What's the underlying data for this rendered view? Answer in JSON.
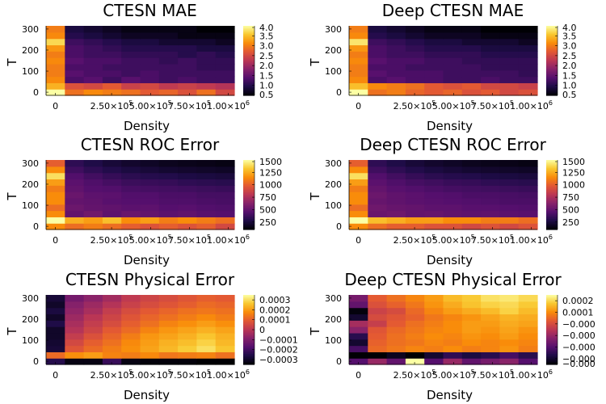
{
  "figure": {
    "background": "#ffffff",
    "colormap": "inferno"
  },
  "chart_data": [
    {
      "type": "heatmap",
      "title": "CTESN MAE",
      "xlabel": "Density",
      "ylabel": "T",
      "xticks": [
        {
          "label": "0"
        },
        {
          "label": "2.50×10",
          "sup": "5"
        },
        {
          "label": "5.00×10",
          "sup": "5"
        },
        {
          "label": "7.50×10",
          "sup": "5"
        },
        {
          "label": "1.00×10",
          "sup": "6"
        }
      ],
      "yticks": [
        "0",
        "100",
        "200",
        "300"
      ],
      "xlim": [
        0,
        1000000
      ],
      "ylim": [
        0,
        300
      ],
      "clim": [
        0.5,
        4.0
      ],
      "colorbar_ticks": [
        "0.5",
        "1.0",
        "1.5",
        "2.0",
        "2.5",
        "3.0",
        "3.5",
        "4.0"
      ],
      "colorbar_values": [
        0.5,
        1.0,
        1.5,
        2.0,
        2.5,
        3.0,
        3.5,
        4.0
      ],
      "grid": false,
      "values": [
        [
          4.0,
          2.9,
          3.1,
          3.0,
          2.9,
          2.7,
          2.8,
          2.6,
          2.9,
          2.5
        ],
        [
          3.4,
          2.6,
          2.5,
          2.7,
          2.4,
          2.5,
          2.3,
          2.4,
          2.3,
          2.2
        ],
        [
          3.1,
          1.3,
          1.4,
          1.2,
          1.4,
          1.3,
          1.2,
          1.3,
          1.2,
          1.2
        ],
        [
          3.0,
          1.4,
          1.3,
          1.3,
          1.2,
          1.3,
          1.2,
          1.2,
          1.2,
          1.2
        ],
        [
          3.0,
          1.3,
          1.3,
          1.2,
          1.2,
          1.2,
          1.2,
          1.2,
          1.1,
          1.1
        ],
        [
          3.1,
          1.4,
          1.3,
          1.3,
          1.2,
          1.2,
          1.1,
          1.2,
          1.1,
          1.1
        ],
        [
          3.0,
          1.3,
          1.2,
          1.2,
          1.1,
          1.1,
          1.1,
          1.0,
          1.1,
          1.0
        ],
        [
          3.2,
          1.3,
          1.2,
          1.1,
          1.0,
          1.0,
          1.0,
          1.0,
          0.9,
          0.9
        ],
        [
          3.7,
          1.2,
          1.1,
          1.0,
          0.9,
          0.9,
          0.8,
          0.8,
          0.8,
          0.7
        ],
        [
          3.1,
          1.0,
          0.9,
          0.8,
          0.7,
          0.7,
          0.7,
          0.6,
          0.6,
          0.6
        ],
        [
          3.0,
          0.9,
          0.8,
          0.7,
          0.6,
          0.6,
          0.6,
          0.6,
          0.5,
          0.5
        ]
      ]
    },
    {
      "type": "heatmap",
      "title": "Deep CTESN MAE",
      "xlabel": "Density",
      "ylabel": "T",
      "xticks": [
        {
          "label": "0"
        },
        {
          "label": "2.50×10",
          "sup": "5"
        },
        {
          "label": "5.00×10",
          "sup": "5"
        },
        {
          "label": "7.50×10",
          "sup": "5"
        },
        {
          "label": "1.00×10",
          "sup": "6"
        }
      ],
      "yticks": [
        "0",
        "100",
        "200",
        "300"
      ],
      "xlim": [
        0,
        1000000
      ],
      "ylim": [
        0,
        300
      ],
      "clim": [
        0.5,
        4.0
      ],
      "colorbar_ticks": [
        "0.5",
        "1.0",
        "1.5",
        "2.0",
        "2.5",
        "3.0",
        "3.5",
        "4.0"
      ],
      "colorbar_values": [
        0.5,
        1.0,
        1.5,
        2.0,
        2.5,
        3.0,
        3.5,
        4.0
      ],
      "grid": false,
      "values": [
        [
          4.0,
          2.9,
          3.0,
          2.8,
          2.7,
          2.8,
          2.6,
          2.7,
          2.5,
          2.6
        ],
        [
          3.5,
          3.1,
          3.0,
          2.9,
          2.7,
          2.6,
          2.7,
          2.5,
          2.5,
          2.4
        ],
        [
          3.1,
          1.3,
          1.4,
          1.3,
          1.3,
          1.2,
          1.2,
          1.3,
          1.2,
          1.2
        ],
        [
          3.0,
          1.4,
          1.3,
          1.3,
          1.3,
          1.2,
          1.2,
          1.2,
          1.2,
          1.1
        ],
        [
          3.0,
          1.3,
          1.3,
          1.2,
          1.2,
          1.2,
          1.2,
          1.1,
          1.1,
          1.1
        ],
        [
          3.1,
          1.4,
          1.3,
          1.3,
          1.2,
          1.2,
          1.1,
          1.1,
          1.1,
          1.1
        ],
        [
          3.0,
          1.3,
          1.2,
          1.2,
          1.1,
          1.1,
          1.1,
          1.0,
          1.0,
          1.0
        ],
        [
          3.2,
          1.3,
          1.2,
          1.1,
          1.0,
          1.0,
          1.0,
          0.9,
          0.9,
          0.9
        ],
        [
          3.8,
          1.2,
          1.1,
          1.0,
          0.9,
          0.9,
          0.8,
          0.8,
          0.8,
          0.7
        ],
        [
          3.1,
          1.0,
          0.9,
          0.8,
          0.7,
          0.7,
          0.7,
          0.6,
          0.6,
          0.6
        ],
        [
          3.0,
          0.9,
          0.8,
          0.7,
          0.6,
          0.6,
          0.6,
          0.5,
          0.5,
          0.5
        ]
      ]
    },
    {
      "type": "heatmap",
      "title": "CTESN ROC Error",
      "xlabel": "Density",
      "ylabel": "T",
      "xticks": [
        {
          "label": "0"
        },
        {
          "label": "2.50×10",
          "sup": "5"
        },
        {
          "label": "5.00×10",
          "sup": "5"
        },
        {
          "label": "7.50×10",
          "sup": "5"
        },
        {
          "label": "1.00×10",
          "sup": "6"
        }
      ],
      "yticks": [
        "0",
        "100",
        "200",
        "300"
      ],
      "xlim": [
        0,
        1000000
      ],
      "ylim": [
        0,
        300
      ],
      "clim": [
        100,
        1500
      ],
      "colorbar_ticks": [
        "250",
        "500",
        "750",
        "1000",
        "1250",
        "1500"
      ],
      "colorbar_values": [
        250,
        500,
        750,
        1000,
        1250,
        1500
      ],
      "grid": false,
      "values": [
        [
          1150,
          1050,
          1100,
          1050,
          1000,
          950,
          1000,
          950,
          1000,
          900
        ],
        [
          1500,
          1250,
          1200,
          1300,
          1150,
          1200,
          1100,
          1150,
          1100,
          1050
        ],
        [
          1150,
          500,
          550,
          480,
          520,
          500,
          470,
          490,
          460,
          450
        ],
        [
          1050,
          530,
          500,
          490,
          470,
          480,
          450,
          460,
          440,
          430
        ],
        [
          1150,
          500,
          490,
          460,
          450,
          450,
          430,
          430,
          420,
          410
        ],
        [
          1150,
          520,
          480,
          470,
          440,
          440,
          420,
          420,
          400,
          400
        ],
        [
          1100,
          490,
          450,
          440,
          410,
          400,
          390,
          380,
          370,
          360
        ],
        [
          1200,
          470,
          430,
          400,
          370,
          360,
          350,
          330,
          320,
          310
        ],
        [
          1400,
          440,
          390,
          350,
          320,
          300,
          290,
          270,
          260,
          250
        ],
        [
          1150,
          380,
          330,
          290,
          260,
          240,
          220,
          210,
          200,
          190
        ],
        [
          1000,
          330,
          280,
          240,
          210,
          190,
          170,
          160,
          150,
          140
        ]
      ]
    },
    {
      "type": "heatmap",
      "title": "Deep CTESN ROC Error",
      "xlabel": "Density",
      "ylabel": "T",
      "xticks": [
        {
          "label": "0"
        },
        {
          "label": "2.50×10",
          "sup": "5"
        },
        {
          "label": "5.00×10",
          "sup": "5"
        },
        {
          "label": "7.50×10",
          "sup": "5"
        },
        {
          "label": "1.00×10",
          "sup": "6"
        }
      ],
      "yticks": [
        "0",
        "100",
        "200",
        "300"
      ],
      "xlim": [
        0,
        1000000
      ],
      "ylim": [
        0,
        300
      ],
      "clim": [
        100,
        1500
      ],
      "colorbar_ticks": [
        "250",
        "500",
        "750",
        "1000",
        "1250",
        "1500"
      ],
      "colorbar_values": [
        250,
        500,
        750,
        1000,
        1250,
        1500
      ],
      "grid": false,
      "values": [
        [
          1150,
          1050,
          1000,
          1000,
          950,
          950,
          900,
          950,
          900,
          950
        ],
        [
          1500,
          1300,
          1250,
          1200,
          1200,
          1150,
          1150,
          1100,
          1100,
          1050
        ],
        [
          1150,
          520,
          540,
          500,
          510,
          490,
          480,
          490,
          470,
          460
        ],
        [
          1050,
          540,
          510,
          500,
          480,
          480,
          460,
          460,
          450,
          440
        ],
        [
          1150,
          510,
          490,
          470,
          460,
          450,
          440,
          430,
          420,
          420
        ],
        [
          1150,
          530,
          490,
          470,
          450,
          440,
          420,
          420,
          410,
          400
        ],
        [
          1100,
          500,
          460,
          440,
          420,
          400,
          390,
          380,
          370,
          360
        ],
        [
          1200,
          470,
          430,
          400,
          380,
          360,
          350,
          330,
          320,
          310
        ],
        [
          1400,
          440,
          390,
          350,
          320,
          300,
          290,
          270,
          260,
          250
        ],
        [
          1150,
          380,
          330,
          290,
          260,
          240,
          220,
          210,
          200,
          190
        ],
        [
          1000,
          330,
          280,
          240,
          210,
          190,
          170,
          160,
          150,
          140
        ]
      ]
    },
    {
      "type": "heatmap",
      "title": "CTESN Physical Error",
      "xlabel": "Density",
      "ylabel": "T",
      "xticks": [
        {
          "label": "0"
        },
        {
          "label": "2.50×10",
          "sup": "5"
        },
        {
          "label": "5.00×10",
          "sup": "5"
        },
        {
          "label": "7.50×10",
          "sup": "5"
        },
        {
          "label": "1.00×10",
          "sup": "6"
        }
      ],
      "yticks": [
        "0",
        "100",
        "200",
        "300"
      ],
      "xlim": [
        0,
        1000000
      ],
      "ylim": [
        0,
        300
      ],
      "clim": [
        -0.00035,
        0.00035
      ],
      "colorbar_ticks": [
        "0.0003",
        "0.0002",
        "0.0001",
        "0",
        "−0.0001",
        "−0.0002",
        "−0.0003"
      ],
      "colorbar_values": [
        0.0003,
        0.0002,
        0.0001,
        0,
        -0.0001,
        -0.0002,
        -0.0003
      ],
      "grid": false,
      "values": [
        [
          -0.00025,
          -0.00033,
          -0.00033,
          -0.00022,
          -0.00033,
          -0.00034,
          -0.00034,
          -0.00034,
          -0.00035,
          -0.00035
        ],
        [
          0.00012,
          0.00018,
          0.0002,
          0.00016,
          0.00015,
          0.00017,
          0.00014,
          0.00015,
          0.00016,
          0.00013
        ],
        [
          -0.00028,
          8e-05,
          0.00012,
          0.00015,
          0.00018,
          0.00021,
          0.00024,
          0.00027,
          0.0003,
          0.00026
        ],
        [
          -0.00029,
          5e-05,
          0.0001,
          0.00013,
          0.00017,
          0.0002,
          0.00023,
          0.00025,
          0.00028,
          0.00024
        ],
        [
          -0.0003,
          2e-05,
          7e-05,
          0.00011,
          0.00015,
          0.00019,
          0.00021,
          0.00023,
          0.00026,
          0.00023
        ],
        [
          -0.0003,
          -1e-05,
          4e-05,
          9e-05,
          0.00012,
          0.00016,
          0.00019,
          0.00021,
          0.00023,
          0.00021
        ],
        [
          -0.00026,
          -3e-05,
          2e-05,
          6e-05,
          0.0001,
          0.00013,
          0.00016,
          0.00018,
          0.0002,
          0.00018
        ],
        [
          -0.0003,
          -5e-05,
          0.0,
          4e-05,
          8e-05,
          0.00011,
          0.00013,
          0.00015,
          0.00017,
          0.00015
        ],
        [
          -0.00027,
          -7e-05,
          -3e-05,
          2e-05,
          6e-05,
          9e-05,
          0.00011,
          0.00013,
          0.00014,
          0.00013
        ],
        [
          -0.0003,
          -9e-05,
          -5e-05,
          -1e-05,
          3e-05,
          6e-05,
          8e-05,
          0.0001,
          0.00012,
          0.00011
        ],
        [
          -0.00028,
          -0.00012,
          -8e-05,
          -4e-05,
          1e-05,
          4e-05,
          6e-05,
          8e-05,
          0.0001,
          9e-05
        ]
      ]
    },
    {
      "type": "heatmap",
      "title": "Deep CTESN Physical Error",
      "xlabel": "Density",
      "ylabel": "T",
      "xticks": [
        {
          "label": "0"
        },
        {
          "label": "2.50×10",
          "sup": "5"
        },
        {
          "label": "5.00×10",
          "sup": "5"
        },
        {
          "label": "7.50×10",
          "sup": "5"
        },
        {
          "label": "1.00×10",
          "sup": "6"
        }
      ],
      "yticks": [
        "0",
        "100",
        "200",
        "300"
      ],
      "xlim": [
        0,
        1000000
      ],
      "ylim": [
        0,
        300
      ],
      "clim": [
        -0.00035,
        0.00025
      ],
      "colorbar_ticks": [
        "0.0002",
        "0.0001",
        "−0.000",
        "−0.000",
        "−0.000",
        "−0.000",
        "−0.000"
      ],
      "colorbar_values": [
        0.0002,
        0.0001,
        0,
        -0.0001,
        -0.0002,
        -0.0003,
        -0.0004
      ],
      "grid": false,
      "values": [
        [
          -0.0002,
          -0.0001,
          -0.00018,
          0.00025,
          -0.0002,
          -0.0001,
          -0.00018,
          -0.00015,
          -0.00012,
          -0.0002
        ],
        [
          -0.00035,
          -0.00035,
          -0.00032,
          -0.00035,
          -0.0003,
          -0.00025,
          -0.00028,
          -0.00026,
          -0.00022,
          -0.00026
        ],
        [
          -0.00022,
          5e-05,
          7e-05,
          9e-05,
          8e-05,
          0.0001,
          8e-05,
          9e-05,
          0.00011,
          8e-05
        ],
        [
          -0.0003,
          4e-05,
          6e-05,
          7e-05,
          9e-05,
          8e-05,
          0.0001,
          9e-05,
          0.0001,
          9e-05
        ],
        [
          -0.00026,
          3e-05,
          6e-05,
          8e-05,
          0.0001,
          9e-05,
          0.00011,
          0.0001,
          0.00012,
          0.0001
        ],
        [
          -0.00012,
          2e-05,
          5e-05,
          7e-05,
          9e-05,
          0.0001,
          0.00012,
          0.00011,
          0.00013,
          0.00011
        ],
        [
          -8e-05,
          -3e-05,
          3e-05,
          6e-05,
          8e-05,
          0.0001,
          0.00012,
          0.00012,
          0.00014,
          0.00013
        ],
        [
          -0.0003,
          0.0,
          2e-05,
          4e-05,
          7e-05,
          9e-05,
          0.00011,
          0.00013,
          0.00015,
          0.00014
        ],
        [
          -0.00034,
          -2e-05,
          0.0,
          5e-05,
          9e-05,
          0.00012,
          0.00014,
          0.00016,
          0.00019,
          0.00016
        ],
        [
          -0.00018,
          1e-05,
          4e-05,
          7e-05,
          0.00011,
          0.00014,
          0.00017,
          0.00019,
          0.0002,
          0.00018
        ],
        [
          -0.00015,
          3e-05,
          6e-05,
          9e-05,
          0.00012,
          0.00016,
          0.00018,
          0.00021,
          0.00022,
          0.0002
        ]
      ]
    }
  ]
}
